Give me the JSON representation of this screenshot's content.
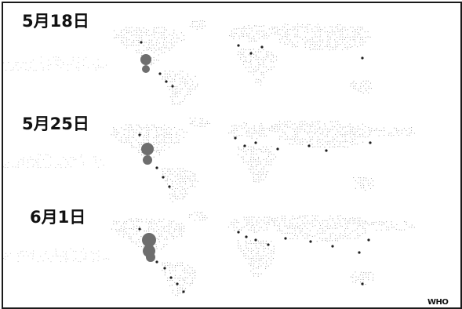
{
  "panels": [
    {
      "date_label": "5月18日"
    },
    {
      "date_label": "5月25日"
    },
    {
      "date_label": "6月1日"
    }
  ],
  "source_label": "WHO",
  "colors": {
    "land_dots": "#8a8a8a",
    "case_markers": "#1e1e1e",
    "large_outbreak": "#6e6e6e",
    "frame": "#1a1a1a"
  }
}
